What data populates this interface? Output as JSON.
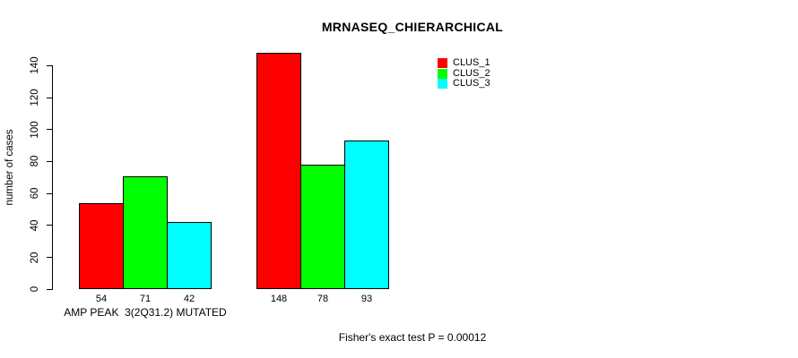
{
  "chart_data": {
    "type": "bar",
    "title": "MRNASEQ_CHIERARCHICAL",
    "xlabel": "",
    "ylabel": "number of cases",
    "ylim": [
      0,
      148
    ],
    "yticks": [
      0,
      20,
      40,
      60,
      80,
      100,
      120,
      140
    ],
    "grid": false,
    "legend_position": "top-right-inside",
    "categories": [
      "AMP PEAK  3(2Q31.2) MUTATED",
      ""
    ],
    "series": [
      {
        "name": "CLUS_1",
        "color": "#FF0000",
        "values": [
          54,
          148
        ]
      },
      {
        "name": "CLUS_2",
        "color": "#00FF00",
        "values": [
          71,
          78
        ]
      },
      {
        "name": "CLUS_3",
        "color": "#00FFFF",
        "values": [
          42,
          93
        ]
      }
    ],
    "show_bar_values": true,
    "annotation": "Fisher's exact test P = 0.00012"
  }
}
